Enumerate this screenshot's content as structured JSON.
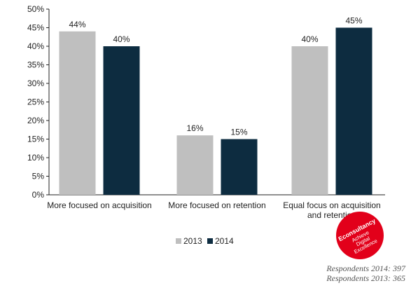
{
  "chart_data": {
    "type": "bar",
    "categories": [
      [
        "More focused on acquisition"
      ],
      [
        "More focused on retention"
      ],
      [
        "Equal focus on acquisition",
        "and retention"
      ]
    ],
    "series": [
      {
        "name": "2013",
        "values": [
          44,
          16,
          40
        ],
        "labels": [
          "44%",
          "16%",
          "40%"
        ],
        "color": "#bfbfbf"
      },
      {
        "name": "2014",
        "values": [
          40,
          15,
          45
        ],
        "labels": [
          "40%",
          "15%",
          "45%"
        ],
        "color": "#0d2c40"
      }
    ],
    "ylim": [
      0,
      50
    ],
    "yticks": [
      "0%",
      "5%",
      "10%",
      "15%",
      "20%",
      "25%",
      "30%",
      "35%",
      "40%",
      "45%",
      "50%"
    ],
    "grid": false,
    "legend": "bottom-center"
  },
  "footer": {
    "respondents_2014": "Respondents 2014: 397",
    "respondents_2013": "Respondents 2013: 365"
  },
  "logo": {
    "lines": [
      "Econsultancy",
      "Achieve",
      "Digital",
      "Excellence"
    ],
    "color": "#e2001a"
  }
}
